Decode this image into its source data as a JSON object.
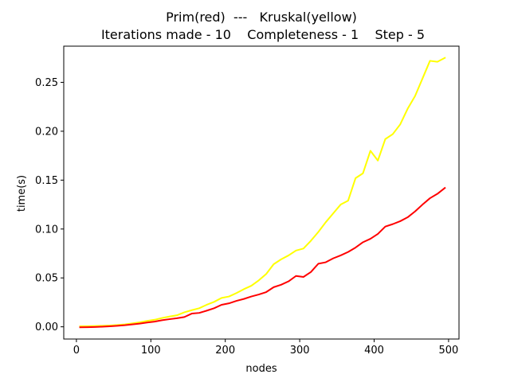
{
  "chart_data": {
    "type": "line",
    "title_line1": "Prim(red)  ---   Kruskal(yellow)",
    "title_line2": "Iterations made - 10    Completeness - 1    Step - 5",
    "xlabel": "nodes",
    "ylabel": "time(s)",
    "xlim": [
      -17,
      514
    ],
    "ylim": [
      -0.0125,
      0.287
    ],
    "xticks": [
      0,
      100,
      200,
      300,
      400,
      500
    ],
    "xtick_labels": [
      "0",
      "100",
      "200",
      "300",
      "400",
      "500"
    ],
    "yticks": [
      0.0,
      0.05,
      0.1,
      0.15,
      0.2,
      0.25
    ],
    "ytick_labels": [
      "0.00",
      "0.05",
      "0.10",
      "0.15",
      "0.20",
      "0.25"
    ],
    "grid": false,
    "x": [
      5,
      15,
      25,
      35,
      45,
      55,
      65,
      75,
      85,
      95,
      105,
      115,
      125,
      135,
      145,
      155,
      165,
      175,
      185,
      195,
      205,
      215,
      225,
      235,
      245,
      255,
      265,
      275,
      285,
      295,
      305,
      315,
      325,
      335,
      345,
      355,
      365,
      375,
      385,
      395,
      405,
      415,
      425,
      435,
      445,
      455,
      465,
      475,
      485,
      495
    ],
    "series": [
      {
        "color": "#ffff00",
        "values": [
          0.0005,
          0.0006,
          0.0008,
          0.001,
          0.0013,
          0.0018,
          0.0025,
          0.0035,
          0.0046,
          0.006,
          0.0072,
          0.009,
          0.0105,
          0.0118,
          0.0148,
          0.017,
          0.019,
          0.0225,
          0.0255,
          0.0295,
          0.031,
          0.0345,
          0.0385,
          0.042,
          0.0475,
          0.054,
          0.064,
          0.069,
          0.073,
          0.078,
          0.08,
          0.088,
          0.097,
          0.107,
          0.116,
          0.125,
          0.129,
          0.152,
          0.157,
          0.18,
          0.17,
          0.192,
          0.197,
          0.207,
          0.223,
          0.236,
          0.254,
          0.272,
          0.271,
          0.275
        ]
      },
      {
        "color": "#ff0000",
        "values": [
          -0.0005,
          -0.0004,
          -0.0002,
          0.0001,
          0.0005,
          0.001,
          0.0016,
          0.0025,
          0.0033,
          0.0044,
          0.0053,
          0.0067,
          0.0078,
          0.0088,
          0.01,
          0.0135,
          0.0142,
          0.0165,
          0.019,
          0.0225,
          0.024,
          0.0265,
          0.0285,
          0.031,
          0.033,
          0.0355,
          0.0405,
          0.043,
          0.0465,
          0.052,
          0.051,
          0.056,
          0.0645,
          0.066,
          0.07,
          0.073,
          0.0765,
          0.081,
          0.0865,
          0.09,
          0.095,
          0.1025,
          0.105,
          0.108,
          0.112,
          0.118,
          0.125,
          0.1315,
          0.136,
          0.142
        ]
      }
    ]
  }
}
